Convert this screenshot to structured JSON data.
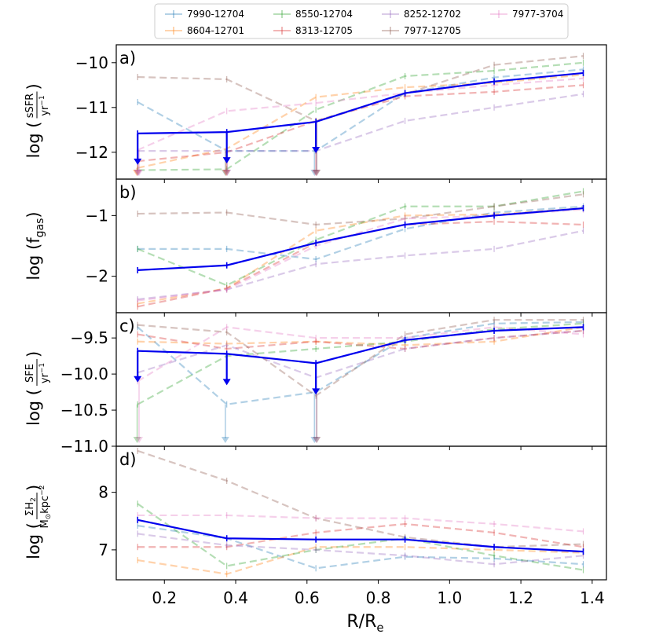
{
  "figure": {
    "xlabel_main": "R/R",
    "xlabel_sub": "e",
    "x_tick_labels": [
      "0.2",
      "0.4",
      "0.6",
      "0.8",
      "1.0",
      "1.2",
      "1.4"
    ]
  },
  "legend": {
    "placement": "top-center",
    "entries": [
      {
        "name": "7990-12704",
        "color": "#1f77b4"
      },
      {
        "name": "8604-12701",
        "color": "#ff7f0e"
      },
      {
        "name": "8550-12704",
        "color": "#2ca02c"
      },
      {
        "name": "8313-12705",
        "color": "#d62728"
      },
      {
        "name": "8252-12702",
        "color": "#9467bd"
      },
      {
        "name": "7977-12705",
        "color": "#8c564b"
      },
      {
        "name": "7977-3704",
        "color": "#e377c2"
      }
    ]
  },
  "chart_data": [
    {
      "type": "line",
      "panel_label": "a)",
      "ylabel_parts": {
        "pre": "log (",
        "num": "sSFR",
        "den": "yr",
        "den_sup": "−1",
        "post": ")"
      },
      "ylim": [
        -12.6,
        -9.6
      ],
      "xlim": [
        0.065,
        1.44
      ],
      "yticks": [
        -12,
        -11,
        -10
      ],
      "ytick_labels": [
        "−12",
        "−11",
        "−10"
      ],
      "x": [
        0.125,
        0.375,
        0.625,
        0.875,
        1.125,
        1.375
      ],
      "series": [
        {
          "name": "7990-12704",
          "values": [
            -10.88,
            -11.97,
            -11.97,
            -10.68,
            -10.33,
            -10.15
          ]
        },
        {
          "name": "8604-12701",
          "values": [
            -12.35,
            -11.92,
            -10.77,
            -10.55,
            -10.45,
            -10.27
          ]
        },
        {
          "name": "8550-12704",
          "values": [
            -12.4,
            -12.38,
            -11.05,
            -10.3,
            -10.18,
            -10.0
          ]
        },
        {
          "name": "8313-12705",
          "values": [
            -12.2,
            -12.0,
            -11.3,
            -10.75,
            -10.65,
            -10.5
          ]
        },
        {
          "name": "8252-12702",
          "values": [
            -11.97,
            -11.97,
            -11.97,
            -11.3,
            -11.0,
            -10.7
          ]
        },
        {
          "name": "7977-12705",
          "values": [
            -10.32,
            -10.37,
            -11.3,
            -10.7,
            -10.05,
            -9.85
          ]
        },
        {
          "name": "7977-3704",
          "values": [
            -11.95,
            -11.08,
            -10.9,
            -10.68,
            -10.5,
            -10.35
          ]
        }
      ],
      "mean": {
        "name": "mean",
        "values": [
          -11.58,
          -11.55,
          -11.32,
          -10.68,
          -10.42,
          -10.23
        ]
      },
      "upper_limit_x": [
        0.125,
        0.375,
        0.625
      ]
    },
    {
      "type": "line",
      "panel_label": "b)",
      "ylabel_parts": {
        "pre": "log (f",
        "sub": "gas",
        "post": ")"
      },
      "ylim": [
        -2.6,
        -0.4
      ],
      "xlim": [
        0.065,
        1.44
      ],
      "yticks": [
        -2,
        -1
      ],
      "ytick_labels": [
        "−2",
        "−1"
      ],
      "x": [
        0.125,
        0.375,
        0.625,
        0.875,
        1.125,
        1.375
      ],
      "series": [
        {
          "name": "7990-12704",
          "values": [
            -1.55,
            -1.55,
            -1.72,
            -1.22,
            -0.95,
            -0.85
          ]
        },
        {
          "name": "8604-12701",
          "values": [
            -2.45,
            -2.2,
            -1.25,
            -1.0,
            -0.98,
            -0.88
          ]
        },
        {
          "name": "8550-12704",
          "values": [
            -1.55,
            -2.15,
            -1.4,
            -0.85,
            -0.85,
            -0.6
          ]
        },
        {
          "name": "8313-12705",
          "values": [
            -2.5,
            -2.2,
            -1.45,
            -1.15,
            -1.1,
            -1.15
          ]
        },
        {
          "name": "8252-12702",
          "values": [
            -2.38,
            -2.22,
            -1.8,
            -1.66,
            -1.55,
            -1.25
          ]
        },
        {
          "name": "7977-12705",
          "values": [
            -0.97,
            -0.95,
            -1.15,
            -1.05,
            -0.85,
            -0.65
          ]
        },
        {
          "name": "7977-3704",
          "values": [
            -2.4,
            -2.22,
            -1.5,
            -1.05,
            -1.0,
            -0.9
          ]
        }
      ],
      "mean": {
        "name": "mean",
        "values": [
          -1.9,
          -1.82,
          -1.45,
          -1.15,
          -1.0,
          -0.88
        ]
      }
    },
    {
      "type": "line",
      "panel_label": "c)",
      "ylabel_parts": {
        "pre": "log (",
        "num": "SFE",
        "den": "yr",
        "den_sup": "−1",
        "post": ")"
      },
      "ylim": [
        -11.0,
        -9.15
      ],
      "xlim": [
        0.065,
        1.44
      ],
      "yticks": [
        -11.0,
        -10.5,
        -10.0,
        -9.5
      ],
      "ytick_labels": [
        "−11.0",
        "−10.5",
        "−10.0",
        "−9.5"
      ],
      "x": [
        0.125,
        0.375,
        0.625,
        0.875,
        1.125,
        1.375
      ],
      "series": [
        {
          "name": "7990-12704",
          "values": [
            -9.35,
            -10.42,
            -10.25,
            -9.5,
            -9.3,
            -9.28
          ]
        },
        {
          "name": "8604-12701",
          "values": [
            -9.55,
            -9.58,
            -9.55,
            -9.6,
            -9.55,
            -9.35
          ]
        },
        {
          "name": "8550-12704",
          "values": [
            -10.42,
            -9.75,
            -9.65,
            -9.55,
            -9.38,
            -9.3
          ]
        },
        {
          "name": "8313-12705",
          "values": [
            -9.45,
            -9.65,
            -9.55,
            -9.65,
            -9.5,
            -9.4
          ]
        },
        {
          "name": "8252-12702",
          "values": [
            -9.98,
            -9.6,
            -10.05,
            -9.65,
            -9.5,
            -9.4
          ]
        },
        {
          "name": "7977-12705",
          "values": [
            -9.32,
            -9.42,
            -10.3,
            -9.45,
            -9.25,
            -9.25
          ]
        },
        {
          "name": "7977-3704",
          "values": [
            -10.1,
            -9.35,
            -9.5,
            -9.5,
            -9.35,
            -9.45
          ]
        }
      ],
      "mean": {
        "name": "mean",
        "values": [
          -9.68,
          -9.72,
          -9.85,
          -9.53,
          -9.4,
          -9.35
        ]
      },
      "upper_limit_x": [
        0.125,
        0.375,
        0.625
      ]
    },
    {
      "type": "line",
      "panel_label": "d)",
      "ylabel_parts": {
        "pre": "log (",
        "num": "ΣH",
        "num_sub": "2",
        "den": "M",
        "den_sub": "⊙",
        "den_rest": "kpc",
        "den_sup": "−2",
        "post": ")"
      },
      "ylim": [
        6.48,
        8.8
      ],
      "xlim": [
        0.065,
        1.44
      ],
      "yticks": [
        7,
        8
      ],
      "ytick_labels": [
        "7",
        "8"
      ],
      "x": [
        0.125,
        0.375,
        0.625,
        0.875,
        1.125,
        1.375
      ],
      "series": [
        {
          "name": "7990-12704",
          "values": [
            7.42,
            7.2,
            6.68,
            6.88,
            6.85,
            6.75
          ]
        },
        {
          "name": "8604-12701",
          "values": [
            6.82,
            6.58,
            7.05,
            7.05,
            7.0,
            6.95
          ]
        },
        {
          "name": "8550-12704",
          "values": [
            7.8,
            6.72,
            7.0,
            7.2,
            6.9,
            6.65
          ]
        },
        {
          "name": "8313-12705",
          "values": [
            7.05,
            7.05,
            7.3,
            7.45,
            7.3,
            7.05
          ]
        },
        {
          "name": "8252-12702",
          "values": [
            7.28,
            7.08,
            7.0,
            6.9,
            6.75,
            6.9
          ]
        },
        {
          "name": "7977-12705",
          "values": [
            8.72,
            8.2,
            7.55,
            7.22,
            7.05,
            7.1
          ]
        },
        {
          "name": "7977-3704",
          "values": [
            7.6,
            7.6,
            7.55,
            7.55,
            7.45,
            7.32
          ]
        }
      ],
      "mean": {
        "name": "mean",
        "values": [
          7.52,
          7.2,
          7.18,
          7.18,
          7.05,
          6.97
        ]
      }
    }
  ]
}
